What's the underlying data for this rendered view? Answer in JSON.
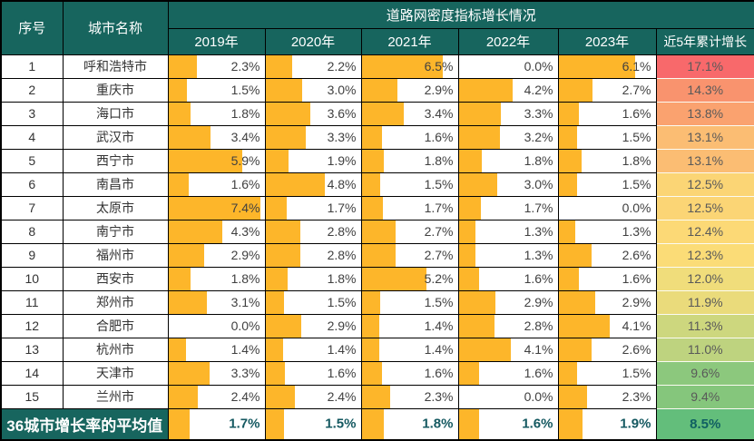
{
  "header": {
    "col_serial": "序号",
    "col_city": "城市名称",
    "group_title": "道路网密度指标增长情况",
    "years": [
      "2019年",
      "2020年",
      "2021年",
      "2022年",
      "2023年"
    ],
    "col_total": "近5年累计增长"
  },
  "colors": {
    "header_bg": "#17655E",
    "bar_fill": "#FDB62A",
    "grid_border": "#000000",
    "summary_value_text": "#155961",
    "scale_max_red": "#F8696B",
    "scale_mid_yellow": "#FBDA75",
    "scale_min_green": "#63BE7B"
  },
  "chart_data": {
    "type": "table",
    "title": "道路网密度指标增长情况",
    "columns": [
      "序号",
      "城市名称",
      "2019年",
      "2020年",
      "2021年",
      "2022年",
      "2023年",
      "近5年累计增长"
    ],
    "value_unit": "%",
    "bar_scale_max": 7.4,
    "layout_hints": "in-cell orange data bars per year column; last column uses red-yellow-green color scale",
    "rows": [
      {
        "no": "1",
        "city": "呼和浩特市",
        "values": [
          2.3,
          2.2,
          6.5,
          0.0,
          6.1
        ],
        "total": 17.1,
        "total_color": "#F8696B"
      },
      {
        "no": "2",
        "city": "重庆市",
        "values": [
          1.5,
          3.0,
          2.9,
          4.2,
          2.7
        ],
        "total": 14.3,
        "total_color": "#F9936E"
      },
      {
        "no": "3",
        "city": "海口市",
        "values": [
          1.8,
          3.6,
          3.4,
          3.3,
          1.6
        ],
        "total": 13.8,
        "total_color": "#FAA26F"
      },
      {
        "no": "4",
        "city": "武汉市",
        "values": [
          3.4,
          3.3,
          1.6,
          3.2,
          1.5
        ],
        "total": 13.1,
        "total_color": "#FBBD73"
      },
      {
        "no": "5",
        "city": "西宁市",
        "values": [
          5.9,
          1.9,
          1.8,
          1.8,
          1.8
        ],
        "total": 13.1,
        "total_color": "#FBBD73"
      },
      {
        "no": "6",
        "city": "南昌市",
        "values": [
          1.6,
          4.8,
          1.5,
          3.0,
          1.5
        ],
        "total": 12.5,
        "total_color": "#FBD575"
      },
      {
        "no": "7",
        "city": "太原市",
        "values": [
          7.4,
          1.7,
          1.7,
          1.7,
          0.0
        ],
        "total": 12.5,
        "total_color": "#FBD575"
      },
      {
        "no": "8",
        "city": "南宁市",
        "values": [
          4.3,
          2.8,
          2.7,
          1.3,
          1.3
        ],
        "total": 12.4,
        "total_color": "#FCD976"
      },
      {
        "no": "9",
        "city": "福州市",
        "values": [
          2.9,
          2.8,
          2.7,
          1.3,
          2.6
        ],
        "total": 12.3,
        "total_color": "#FBDC77"
      },
      {
        "no": "10",
        "city": "西安市",
        "values": [
          1.8,
          1.8,
          5.2,
          1.6,
          1.6
        ],
        "total": 12.0,
        "total_color": "#F0DD7B"
      },
      {
        "no": "11",
        "city": "郑州市",
        "values": [
          3.1,
          1.5,
          1.5,
          2.9,
          2.9
        ],
        "total": 11.9,
        "total_color": "#EADB7B"
      },
      {
        "no": "12",
        "city": "合肥市",
        "values": [
          0.0,
          2.9,
          1.4,
          2.8,
          4.1
        ],
        "total": 11.3,
        "total_color": "#CDD77E"
      },
      {
        "no": "13",
        "city": "杭州市",
        "values": [
          1.4,
          1.4,
          1.4,
          4.1,
          2.6
        ],
        "total": 11.0,
        "total_color": "#BED37F"
      },
      {
        "no": "14",
        "city": "天津市",
        "values": [
          3.3,
          1.6,
          1.6,
          1.6,
          1.5
        ],
        "total": 9.6,
        "total_color": "#8CC87D"
      },
      {
        "no": "15",
        "city": "兰州市",
        "values": [
          2.4,
          2.4,
          2.3,
          0.0,
          2.3
        ],
        "total": 9.4,
        "total_color": "#85C67C"
      }
    ],
    "summary": {
      "label": "36城市增长率的平均值",
      "values": [
        1.7,
        1.5,
        1.8,
        1.6,
        1.9
      ],
      "total": 8.5,
      "total_color": "#63BE7B"
    }
  }
}
